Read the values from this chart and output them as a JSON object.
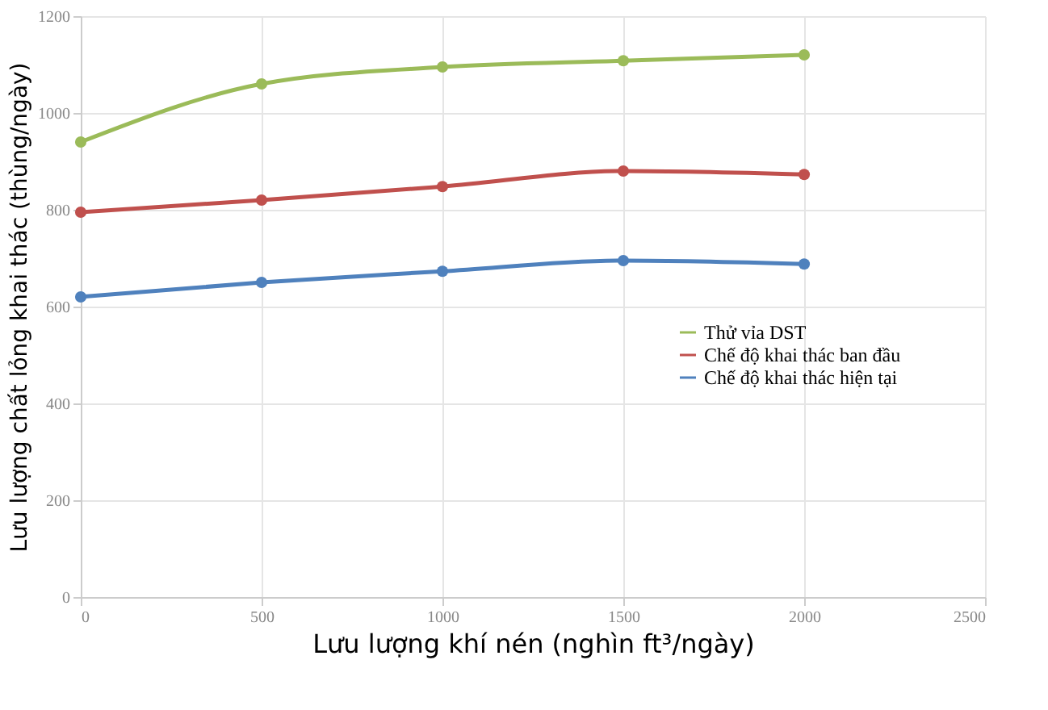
{
  "chart_data": {
    "type": "line",
    "xlabel": "Lưu lượng khí nén (nghìn ft³/ngày)",
    "ylabel": "Lưu lượng chất lỏng khai thác (thùng/ngày)",
    "x": [
      0,
      500,
      1000,
      1500,
      2000
    ],
    "series": [
      {
        "name": "Thử vỉa DST",
        "color": "#9bbb59",
        "values": [
          940,
          1060,
          1095,
          1108,
          1120
        ]
      },
      {
        "name": "Chế độ khai thác ban đầu",
        "color": "#c0504d",
        "values": [
          795,
          820,
          848,
          880,
          873
        ]
      },
      {
        "name": "Chế độ khai thác hiện tại",
        "color": "#4f81bd",
        "values": [
          620,
          650,
          673,
          695,
          688
        ]
      }
    ],
    "xlim": [
      0,
      2500
    ],
    "xticks": [
      0,
      500,
      1000,
      1500,
      2000,
      2500
    ],
    "ylim": [
      0,
      1200
    ],
    "yticks": [
      0,
      200,
      400,
      600,
      800,
      1000,
      1200
    ],
    "grid": true,
    "legend": "right",
    "marker": "circle",
    "line_style": "solid"
  }
}
